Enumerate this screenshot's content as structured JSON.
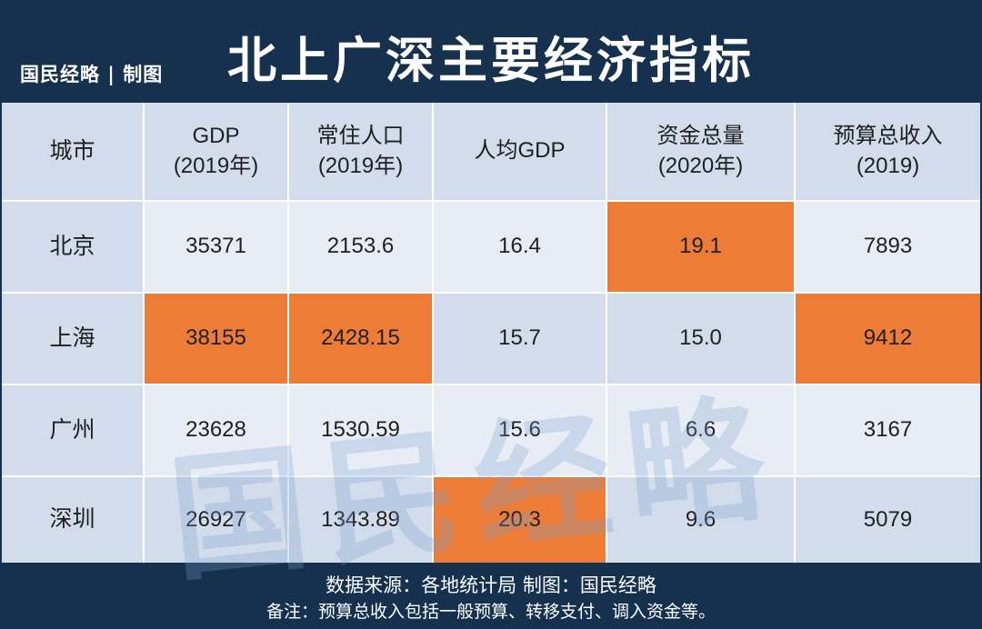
{
  "header": {
    "brand": "国民经略 | 制图",
    "title": "北上广深主要经济指标"
  },
  "table": {
    "columns": [
      "城市",
      "GDP\n(2019年)",
      "常住人口\n(2019年)",
      "人均GDP",
      "资金总量\n(2020年)",
      "预算总收入\n(2019)"
    ],
    "rows": [
      {
        "cells": [
          "北京",
          "35371",
          "2153.6",
          "16.4",
          "19.1",
          "7893"
        ],
        "highlight": [
          false,
          false,
          false,
          false,
          true,
          false
        ]
      },
      {
        "cells": [
          "上海",
          "38155",
          "2428.15",
          "15.7",
          "15.0",
          "9412"
        ],
        "highlight": [
          false,
          true,
          true,
          false,
          false,
          true
        ]
      },
      {
        "cells": [
          "广州",
          "23628",
          "1530.59",
          "15.6",
          "6.6",
          "3167"
        ],
        "highlight": [
          false,
          false,
          false,
          false,
          false,
          false
        ]
      },
      {
        "cells": [
          "深圳",
          "26927",
          "1343.89",
          "20.3",
          "9.6",
          "5079"
        ],
        "highlight": [
          false,
          false,
          false,
          true,
          false,
          false
        ]
      }
    ],
    "highlight_color": "#ec7c36"
  },
  "watermark": "国民经略",
  "footer": {
    "source": "数据来源：各地统计局   制图：国民经略",
    "note": "备注：预算总收入包括一般预算、转移支付、调入资金等。"
  },
  "colors": {
    "background": "#16314d",
    "header_cell": "#d3dcea",
    "row_light": "#e8ecf4",
    "highlight": "#ec7c36"
  }
}
